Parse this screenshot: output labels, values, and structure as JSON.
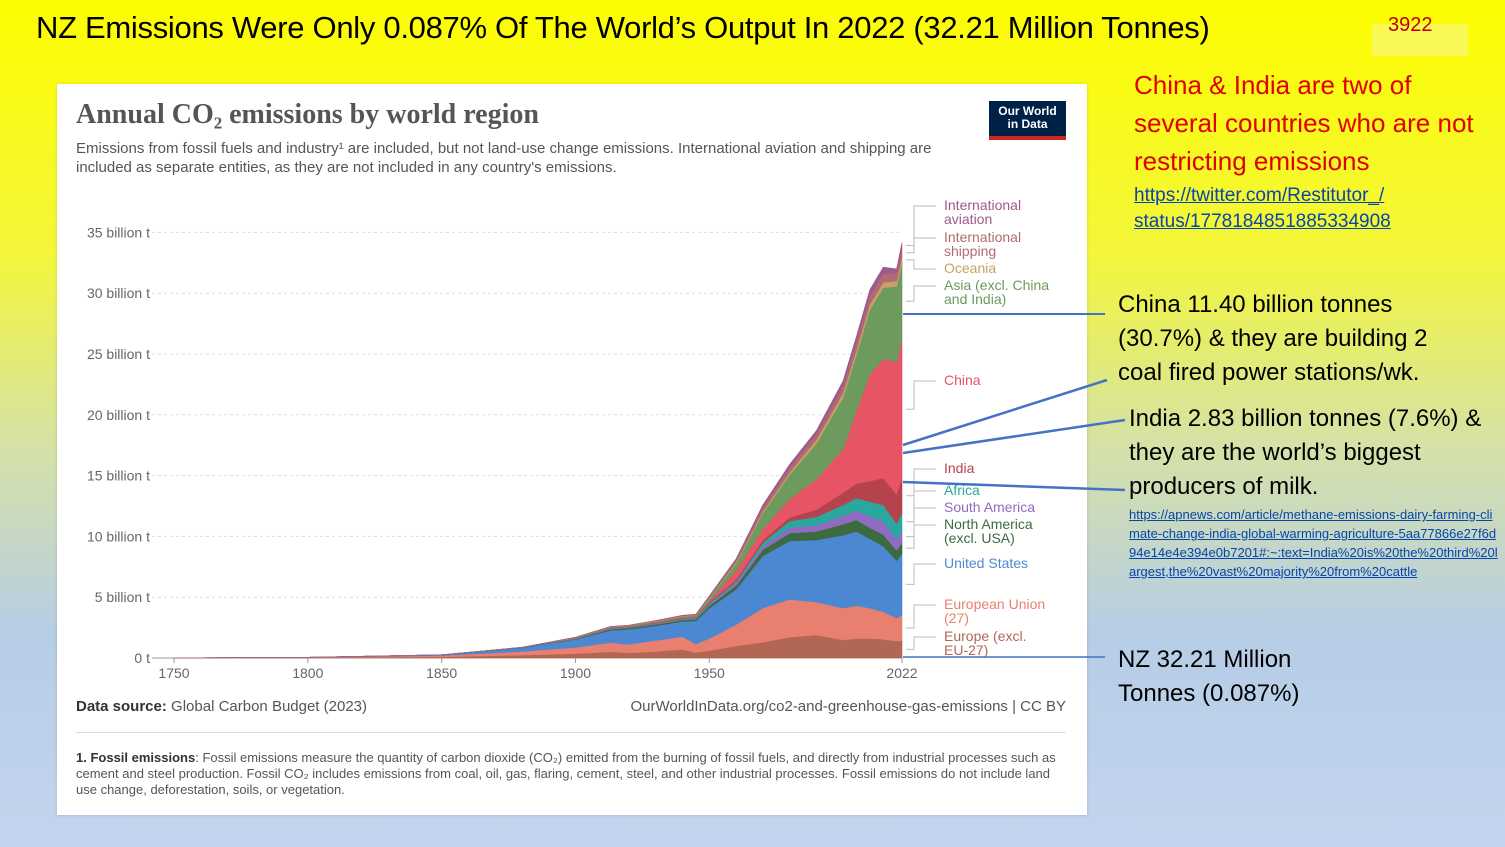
{
  "slide": {
    "title": "NZ Emissions Were Only 0.087% Of The World’s Output In 2022 (32.21 Million Tonnes)",
    "number": "3922"
  },
  "annotations": {
    "red_note": "China & India are two of several countries who are not restricting emissions",
    "twitter_link": "https://twitter.com/Restitutor_/ status/1778184851885334908",
    "china_note": "China 11.40 billion tonnes (30.7%) & they are building 2 coal fired power stations/wk.",
    "india_note": "India 2.83 billion tonnes (7.6%) & they are the world’s biggest producers of milk.",
    "apnews_link": "https://apnews.com/article/methane-emissions-dairy-farming-climate-change-india-global-warming-agriculture-5aa77866e27f6d94e14e4e394e0b7201#:~:text=India%20is%20the%20third%20largest,the%20vast%20majority%20from%20cattle",
    "nz_note": "NZ 32.21 Million Tonnes (0.087%)",
    "line_color": "#4472c4"
  },
  "chart_card": {
    "logo_line1": "Our World",
    "logo_line2": "in Data",
    "data_source_label": "Data source:",
    "data_source_value": "Global Carbon Budget (2023)",
    "url": "OurWorldInData.org/co2-and-greenhouse-gas-emissions | CC BY",
    "footnote_label": "1. Fossil emissions",
    "footnote_text": ": Fossil emissions measure the quantity of carbon dioxide (CO₂) emitted from the burning of fossil fuels, and directly from industrial processes such as cement and steel production. Fossil CO₂ includes emissions from coal, oil, gas, flaring, cement, steel, and other industrial processes. Fossil emissions do not include land use change, deforestation, soils, or vegetation."
  },
  "chart_data": {
    "type": "area",
    "stacked": true,
    "title": "Annual CO₂ emissions by world region",
    "subtitle": "Emissions from fossil fuels and industry¹ are included, but not land-use change emissions. International aviation and shipping are included as separate entities, as they are not included in any country's emissions.",
    "x_ticks": [
      "1750",
      "1800",
      "1850",
      "1900",
      "1950",
      "2022"
    ],
    "x_tick_values": [
      1750,
      1800,
      1850,
      1900,
      1950,
      2022
    ],
    "y_ticks": [
      "0 t",
      "5 billion t",
      "10 billion t",
      "15 billion t",
      "20 billion t",
      "25 billion t",
      "30 billion t",
      "35 billion t"
    ],
    "y_tick_values": [
      0,
      5,
      10,
      15,
      20,
      25,
      30,
      35
    ],
    "ylim": [
      0,
      37.5
    ],
    "xlim": [
      1750,
      2022
    ],
    "grid": "horizontal dotted",
    "legend": "right, labels at series end",
    "unit": "billion t",
    "x": [
      1750,
      1800,
      1850,
      1880,
      1900,
      1913,
      1920,
      1930,
      1940,
      1945,
      1950,
      1960,
      1970,
      1980,
      1990,
      2000,
      2005,
      2010,
      2015,
      2020,
      2022
    ],
    "series": [
      {
        "name": "Europe (excl. EU-27)",
        "color": "#b16753",
        "values": [
          0.01,
          0.03,
          0.1,
          0.24,
          0.36,
          0.52,
          0.42,
          0.55,
          0.7,
          0.45,
          0.6,
          1.0,
          1.3,
          1.72,
          1.9,
          1.5,
          1.6,
          1.6,
          1.55,
          1.4,
          1.42
        ]
      },
      {
        "name": "European Union (27)",
        "color": "#e9806f",
        "values": [
          0,
          0.02,
          0.1,
          0.3,
          0.5,
          0.75,
          0.7,
          0.9,
          1.05,
          0.7,
          1.0,
          1.75,
          2.8,
          3.1,
          2.7,
          2.6,
          2.7,
          2.5,
          2.25,
          1.9,
          2.1
        ]
      },
      {
        "name": "United States",
        "color": "#4c88d1",
        "values": [
          0,
          0.01,
          0.05,
          0.3,
          0.66,
          1.0,
          1.25,
          1.2,
          1.25,
          1.9,
          2.5,
          2.9,
          4.3,
          4.8,
          5.1,
          6.0,
          6.1,
          5.7,
          5.4,
          4.7,
          5.06
        ]
      },
      {
        "name": "North America (excl. USA)",
        "color": "#3b6b3f",
        "values": [
          0,
          0,
          0.01,
          0.02,
          0.05,
          0.1,
          0.1,
          0.12,
          0.13,
          0.15,
          0.2,
          0.3,
          0.5,
          0.65,
          0.7,
          0.9,
          0.95,
          0.9,
          0.95,
          0.85,
          0.9
        ]
      },
      {
        "name": "South America",
        "color": "#8f6bc1",
        "values": [
          0,
          0,
          0,
          0.01,
          0.02,
          0.04,
          0.04,
          0.05,
          0.05,
          0.06,
          0.1,
          0.2,
          0.3,
          0.45,
          0.5,
          0.7,
          0.8,
          0.95,
          1.1,
          0.9,
          1.0
        ]
      },
      {
        "name": "Africa",
        "color": "#2aa79e",
        "values": [
          0,
          0,
          0,
          0.01,
          0.02,
          0.03,
          0.03,
          0.04,
          0.05,
          0.06,
          0.1,
          0.15,
          0.3,
          0.55,
          0.7,
          0.9,
          1.0,
          1.2,
          1.35,
          1.3,
          1.45
        ]
      },
      {
        "name": "India",
        "color": "#b5434e",
        "values": [
          0,
          0,
          0,
          0,
          0.02,
          0.03,
          0.04,
          0.05,
          0.06,
          0.06,
          0.08,
          0.13,
          0.2,
          0.3,
          0.6,
          1.0,
          1.2,
          1.7,
          2.2,
          2.4,
          2.83
        ]
      },
      {
        "name": "China",
        "color": "#e65466",
        "values": [
          0,
          0,
          0,
          0,
          0.02,
          0.03,
          0.03,
          0.04,
          0.06,
          0.05,
          0.08,
          0.78,
          0.9,
          1.5,
          2.5,
          3.6,
          6.0,
          8.8,
          9.8,
          10.9,
          11.4
        ]
      },
      {
        "name": "Asia (excl. China and India)",
        "color": "#6d9a5d",
        "values": [
          0,
          0,
          0,
          0,
          0.03,
          0.05,
          0.05,
          0.07,
          0.09,
          0.08,
          0.25,
          0.55,
          1.3,
          2.0,
          2.95,
          4.2,
          4.6,
          5.3,
          5.85,
          6.2,
          6.35
        ]
      },
      {
        "name": "Oceania",
        "color": "#c5a165",
        "values": [
          0,
          0,
          0,
          0,
          0.01,
          0.01,
          0.01,
          0.02,
          0.02,
          0.02,
          0.05,
          0.1,
          0.15,
          0.2,
          0.3,
          0.4,
          0.42,
          0.45,
          0.45,
          0.45,
          0.46
        ]
      },
      {
        "name": "International shipping",
        "color": "#b26a72",
        "values": [
          0,
          0,
          0,
          0,
          0.02,
          0.03,
          0.03,
          0.04,
          0.04,
          0.05,
          0.1,
          0.2,
          0.35,
          0.4,
          0.45,
          0.6,
          0.65,
          0.7,
          0.7,
          0.65,
          0.7
        ]
      },
      {
        "name": "International aviation",
        "color": "#9c5b8c",
        "values": [
          0,
          0,
          0,
          0,
          0,
          0,
          0,
          0,
          0.01,
          0.02,
          0.05,
          0.1,
          0.18,
          0.25,
          0.3,
          0.4,
          0.45,
          0.5,
          0.55,
          0.35,
          0.5
        ]
      }
    ]
  }
}
